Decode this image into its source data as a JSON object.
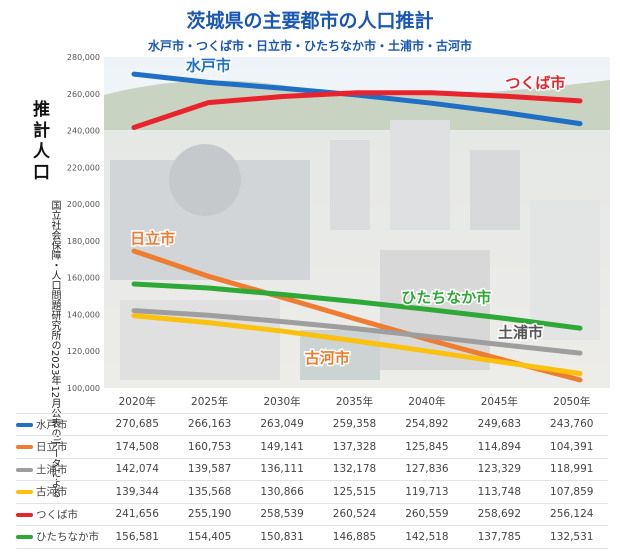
{
  "title": "茨城県の主要都市の人口推計",
  "subtitle": "水戸市・つくば市・日立市・ひたちなか市・土浦市・古河市",
  "ylabel": "推計人口",
  "source": "国立社会保障・人口問題研究所の2023年12月公表のデータによる",
  "chart_data": {
    "type": "line",
    "title": "茨城県の主要都市の人口推計",
    "subtitle": "水戸市・つくば市・日立市・ひたちなか市・土浦市・古河市",
    "ylabel": "推計人口",
    "x": [
      "2020年",
      "2025年",
      "2030年",
      "2035年",
      "2040年",
      "2045年",
      "2050年"
    ],
    "ylim": [
      100000,
      280000
    ],
    "yticks": [
      "100,000",
      "120,000",
      "140,000",
      "160,000",
      "180,000",
      "200,000",
      "220,000",
      "240,000",
      "260,000",
      "280,000"
    ],
    "grid": false,
    "legend": "table-below",
    "series": [
      {
        "name": "水戸市",
        "color": "#1f6fc4",
        "values": [
          270685,
          266163,
          263049,
          259358,
          254892,
          249683,
          243760
        ],
        "display": [
          "270,685",
          "266,163",
          "263,049",
          "259,358",
          "254,892",
          "249,683",
          "243,760"
        ]
      },
      {
        "name": "日立市",
        "color": "#ee7d32",
        "values": [
          174508,
          160753,
          149141,
          137328,
          125845,
          114894,
          104391
        ],
        "display": [
          "174,508",
          "160,753",
          "149,141",
          "137,328",
          "125,845",
          "114,894",
          "104,391"
        ]
      },
      {
        "name": "土浦市",
        "color": "#9e9e9e",
        "values": [
          142074,
          139587,
          136111,
          132178,
          127836,
          123329,
          118991
        ],
        "display": [
          "142,074",
          "139,587",
          "136,111",
          "132,178",
          "127,836",
          "123,329",
          "118,991"
        ]
      },
      {
        "name": "古河市",
        "color": "#fbc10d",
        "values": [
          139344,
          135568,
          130866,
          125515,
          119713,
          113748,
          107859
        ],
        "display": [
          "139,344",
          "135,568",
          "130,866",
          "125,515",
          "119,713",
          "113,748",
          "107,859"
        ]
      },
      {
        "name": "つくば市",
        "color": "#e8232b",
        "values": [
          241656,
          255190,
          258539,
          260524,
          260559,
          258692,
          256124
        ],
        "display": [
          "241,656",
          "255,190",
          "258,539",
          "260,524",
          "260,559",
          "258,692",
          "256,124"
        ]
      },
      {
        "name": "ひたちなか市",
        "color": "#2ea836",
        "values": [
          156581,
          154405,
          150831,
          146885,
          142518,
          137785,
          132531
        ],
        "display": [
          "156,581",
          "154,405",
          "150,831",
          "146,885",
          "142,518",
          "137,785",
          "132,531"
        ]
      }
    ],
    "annotations": [
      {
        "series": 0,
        "text": "水戸市",
        "color": "#1f6fc4"
      },
      {
        "series": 4,
        "text": "つくば市",
        "color": "#e8232b"
      },
      {
        "series": 1,
        "text": "日立市",
        "color": "#ee7d32"
      },
      {
        "series": 5,
        "text": "ひたちなか市",
        "color": "#2ea836"
      },
      {
        "series": 2,
        "text": "土浦市",
        "color": "#555555"
      },
      {
        "series": 3,
        "text": "古河市",
        "color": "#ee7d32"
      }
    ]
  }
}
